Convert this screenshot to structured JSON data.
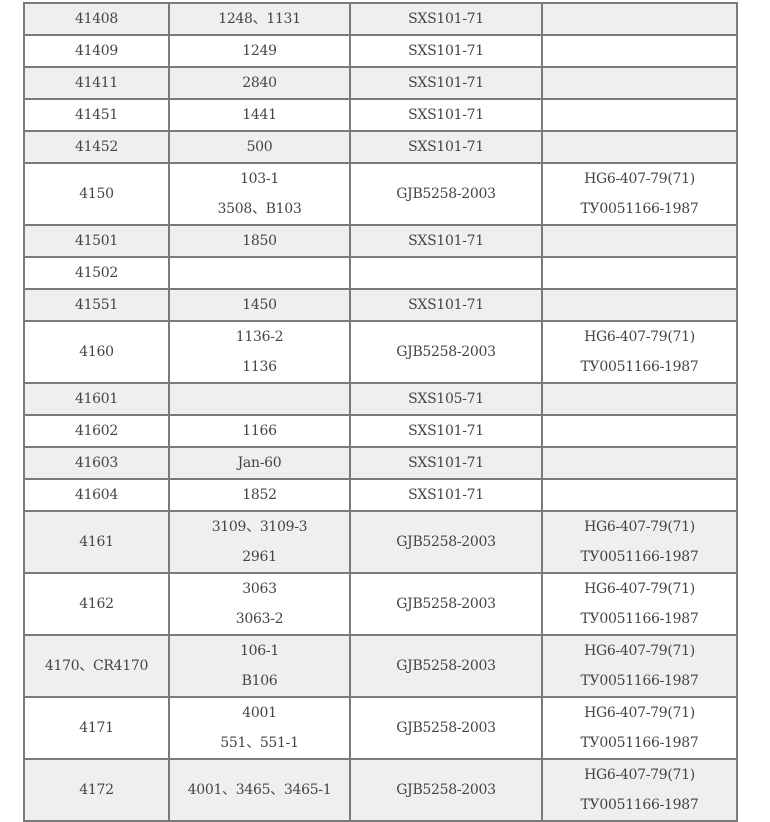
{
  "table": {
    "rows": [
      {
        "c1": "41408",
        "c2": [
          "1248、1131"
        ],
        "c3": "SXS101-71",
        "c4": []
      },
      {
        "c1": "41409",
        "c2": [
          "1249"
        ],
        "c3": "SXS101-71",
        "c4": []
      },
      {
        "c1": "41411",
        "c2": [
          "2840"
        ],
        "c3": "SXS101-71",
        "c4": []
      },
      {
        "c1": "41451",
        "c2": [
          "1441"
        ],
        "c3": "SXS101-71",
        "c4": []
      },
      {
        "c1": "41452",
        "c2": [
          "500"
        ],
        "c3": "SXS101-71",
        "c4": []
      },
      {
        "c1": "4150",
        "c2": [
          "103-1",
          "3508、B103"
        ],
        "c3": "GJB5258-2003",
        "c4": [
          "HG6-407-79(71)",
          "ТУ0051166-1987"
        ]
      },
      {
        "c1": "41501",
        "c2": [
          "1850"
        ],
        "c3": "SXS101-71",
        "c4": []
      },
      {
        "c1": "41502",
        "c2": [],
        "c3": "",
        "c4": []
      },
      {
        "c1": "41551",
        "c2": [
          "1450"
        ],
        "c3": "SXS101-71",
        "c4": []
      },
      {
        "c1": "4160",
        "c2": [
          "1136-2",
          "1136"
        ],
        "c3": "GJB5258-2003",
        "c4": [
          "HG6-407-79(71)",
          "ТУ0051166-1987"
        ]
      },
      {
        "c1": "41601",
        "c2": [],
        "c3": "SXS105-71",
        "c4": []
      },
      {
        "c1": "41602",
        "c2": [
          "1166"
        ],
        "c3": "SXS101-71",
        "c4": []
      },
      {
        "c1": "41603",
        "c2": [
          "Jan-60"
        ],
        "c3": "SXS101-71",
        "c4": []
      },
      {
        "c1": "41604",
        "c2": [
          "1852"
        ],
        "c3": "SXS101-71",
        "c4": []
      },
      {
        "c1": "4161",
        "c2": [
          "3109、3109-3",
          "2961"
        ],
        "c3": "GJB5258-2003",
        "c4": [
          "HG6-407-79(71)",
          "ТУ0051166-1987"
        ]
      },
      {
        "c1": "4162",
        "c2": [
          "3063",
          "3063-2"
        ],
        "c3": "GJB5258-2003",
        "c4": [
          "HG6-407-79(71)",
          "ТУ0051166-1987"
        ]
      },
      {
        "c1": "4170、CR4170",
        "c2": [
          "106-1",
          "B106"
        ],
        "c3": "GJB5258-2003",
        "c4": [
          "HG6-407-79(71)",
          "ТУ0051166-1987"
        ]
      },
      {
        "c1": "4171",
        "c2": [
          "4001",
          "551、551-1"
        ],
        "c3": "GJB5258-2003",
        "c4": [
          "HG6-407-79(71)",
          "ТУ0051166-1987"
        ]
      },
      {
        "c1": "4172",
        "c2": [
          "4001、3465、3465-1",
          ""
        ],
        "c3": "GJB5258-2003",
        "c4": [
          "HG6-407-79(71)",
          "ТУ0051166-1987"
        ]
      }
    ]
  }
}
